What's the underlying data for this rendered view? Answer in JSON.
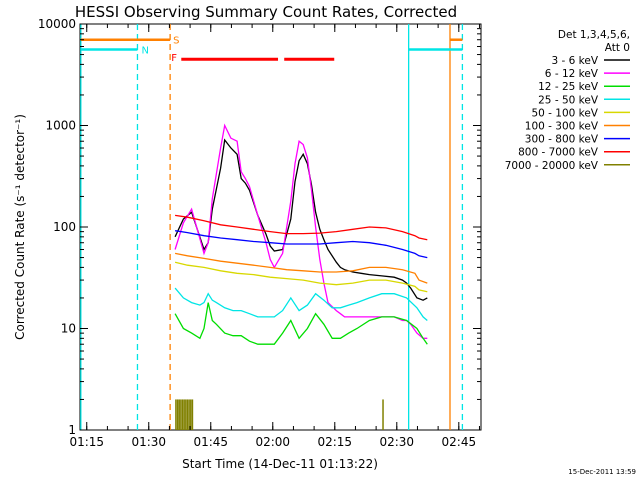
{
  "chart_data": {
    "type": "line",
    "title": "HESSI Observing Summary Count Rates, Corrected",
    "xlabel": "Start Time (14-Dec-11 01:13:22)",
    "ylabel": "Corrected Count Rate (s⁻¹ detector⁻¹)",
    "x_unit": "minutes after 01:13:22",
    "xlim": [
      0,
      97
    ],
    "ylim": [
      1,
      10000
    ],
    "yscale": "log",
    "x_ticks": [
      {
        "at": 1.63,
        "label": "01:15"
      },
      {
        "at": 16.63,
        "label": "01:30"
      },
      {
        "at": 31.63,
        "label": "01:45"
      },
      {
        "at": 46.63,
        "label": "02:00"
      },
      {
        "at": 61.63,
        "label": "02:15"
      },
      {
        "at": 76.63,
        "label": "02:30"
      },
      {
        "at": 91.63,
        "label": "02:45"
      }
    ],
    "y_ticks": [
      {
        "at": 1,
        "label": "1"
      },
      {
        "at": 10,
        "label": "10"
      },
      {
        "at": 100,
        "label": "100"
      },
      {
        "at": 1000,
        "label": "1000"
      },
      {
        "at": 10000,
        "label": "10000"
      }
    ],
    "legend": {
      "position": "right",
      "header": [
        "Det 1,3,4,5,6,",
        "Att 0"
      ]
    },
    "series": [
      {
        "name": "3 - 6 keV",
        "color": "#000000",
        "x": [
          23,
          25,
          27,
          30,
          31,
          32,
          34,
          35,
          36.5,
          38,
          39,
          40,
          41,
          43,
          45,
          46,
          47,
          49,
          51,
          52,
          53,
          54,
          55,
          56,
          57,
          58,
          59,
          60,
          62,
          63,
          64,
          66,
          68,
          70,
          73,
          76,
          78,
          79,
          80,
          81.5,
          83,
          84
        ],
        "y": [
          80,
          120,
          140,
          60,
          70,
          150,
          380,
          720,
          600,
          520,
          300,
          270,
          230,
          130,
          85,
          65,
          58,
          60,
          120,
          280,
          450,
          520,
          420,
          260,
          140,
          95,
          75,
          60,
          45,
          40,
          38,
          36,
          35,
          34,
          33,
          32,
          30,
          28,
          25,
          20,
          19,
          20
        ]
      },
      {
        "name": "6 - 12 keV",
        "color": "#ff00ff",
        "x": [
          23,
          25,
          27,
          30,
          31,
          32,
          34,
          35,
          36.5,
          38,
          39,
          40,
          41,
          43,
          45,
          46,
          47,
          49,
          51,
          52,
          53,
          54,
          55,
          56,
          57,
          58,
          59,
          60,
          62,
          63,
          64,
          66,
          68,
          70,
          73,
          76,
          78,
          79,
          80,
          81.5,
          83,
          84
        ],
        "y": [
          60,
          110,
          150,
          55,
          70,
          190,
          600,
          1000,
          750,
          700,
          350,
          300,
          250,
          130,
          70,
          48,
          40,
          55,
          180,
          420,
          700,
          650,
          480,
          230,
          100,
          48,
          28,
          18,
          15,
          14,
          13,
          13,
          13,
          13,
          13,
          13,
          12,
          12,
          11,
          9,
          8,
          8
        ]
      },
      {
        "name": "12 - 25 keV",
        "color": "#00dd00",
        "x": [
          23,
          25,
          27,
          29,
          30,
          31,
          32,
          33,
          35,
          37,
          39,
          41,
          43,
          45,
          47,
          49,
          51,
          53,
          55,
          57,
          59,
          61,
          63,
          65,
          67,
          70,
          73,
          76,
          79,
          81.5,
          83,
          84
        ],
        "y": [
          14,
          10,
          9,
          8,
          10,
          18,
          12,
          11,
          9,
          8.5,
          8.5,
          7.5,
          7,
          7,
          7,
          9,
          12,
          8,
          10,
          14,
          11,
          8,
          8,
          9,
          10,
          12,
          13,
          13,
          12,
          10,
          8,
          7
        ]
      },
      {
        "name": "25 - 50 keV",
        "color": "#00e5e5",
        "x": [
          23,
          25,
          27,
          29,
          30,
          31,
          32,
          33,
          35,
          37,
          39,
          41,
          43,
          45,
          47,
          49,
          51,
          53,
          55,
          57,
          59,
          61,
          63,
          65,
          67,
          70,
          73,
          76,
          79,
          81.5,
          83,
          84
        ],
        "y": [
          25,
          20,
          18,
          17,
          18,
          22,
          19,
          18,
          16,
          15,
          15,
          14,
          13,
          13,
          13,
          15,
          20,
          15,
          17,
          22,
          19,
          16,
          16,
          17,
          18,
          20,
          22,
          22,
          20,
          16,
          13,
          12
        ]
      },
      {
        "name": "50 - 100 keV",
        "color": "#d8d800",
        "x": [
          23,
          26,
          30,
          34,
          38,
          42,
          46,
          50,
          54,
          58,
          62,
          66,
          70,
          74,
          78,
          81,
          82,
          84
        ],
        "y": [
          45,
          42,
          40,
          37,
          35,
          34,
          32,
          31,
          30,
          28,
          27,
          28,
          30,
          30,
          28,
          26,
          24,
          23
        ]
      },
      {
        "name": "100 - 300 keV",
        "color": "#ff8000",
        "x": [
          23,
          26,
          30,
          34,
          38,
          42,
          46,
          50,
          54,
          58,
          62,
          66,
          70,
          74,
          78,
          81,
          82,
          84
        ],
        "y": [
          55,
          52,
          49,
          46,
          44,
          42,
          40,
          38,
          37,
          36,
          36,
          37,
          40,
          40,
          38,
          35,
          30,
          28
        ]
      },
      {
        "name": "300 - 800 keV",
        "color": "#0000ff",
        "x": [
          23,
          26,
          30,
          34,
          38,
          42,
          46,
          50,
          54,
          58,
          62,
          66,
          70,
          74,
          78,
          81,
          82,
          84
        ],
        "y": [
          92,
          88,
          82,
          78,
          75,
          72,
          70,
          68,
          68,
          68,
          70,
          72,
          70,
          66,
          60,
          55,
          52,
          50
        ]
      },
      {
        "name": "800 - 7000 keV",
        "color": "#ff0000",
        "x": [
          23,
          26,
          30,
          34,
          38,
          42,
          46,
          50,
          54,
          58,
          62,
          66,
          70,
          74,
          78,
          81,
          82,
          84
        ],
        "y": [
          130,
          125,
          115,
          105,
          100,
          95,
          90,
          86,
          86,
          87,
          90,
          95,
          100,
          98,
          90,
          82,
          78,
          75
        ]
      },
      {
        "name": "7000 - 20000 keV",
        "color": "#808000",
        "x": [
          23.2,
          23.6,
          24,
          24.4,
          24.8,
          25.2,
          25.6,
          26,
          26.4,
          26.8,
          27.2,
          73.3
        ],
        "y": [
          2,
          2,
          2,
          2,
          2,
          2,
          2,
          2,
          2,
          2,
          2,
          2
        ]
      }
    ],
    "flags": [
      {
        "label": "S",
        "color": "#ff8000",
        "segments": [
          [
            0.2,
            21.8
          ],
          [
            89.5,
            92.5
          ]
        ],
        "y": 7000
      },
      {
        "label": "N",
        "color": "#00e5e5",
        "segments": [
          [
            0.2,
            13.9
          ],
          [
            79.5,
            92.5
          ]
        ],
        "y": 5600
      },
      {
        "label": "F",
        "color": "#ff0000",
        "segments": [
          [
            24.5,
            47.9
          ],
          [
            49.4,
            61.5
          ]
        ],
        "y": 4500
      }
    ],
    "vertical_markers": [
      {
        "x": 0.2,
        "color": "#00e5e5",
        "style": "solid"
      },
      {
        "x": 13.9,
        "color": "#00e5e5",
        "style": "dashed"
      },
      {
        "x": 21.8,
        "color": "#ff8000",
        "style": "dashed"
      },
      {
        "x": 79.5,
        "color": "#00e5e5",
        "style": "solid"
      },
      {
        "x": 89.5,
        "color": "#ff8000",
        "style": "solid"
      },
      {
        "x": 92.5,
        "color": "#00e5e5",
        "style": "dashed"
      }
    ]
  },
  "timestamp": "15-Dec-2011 13:59"
}
